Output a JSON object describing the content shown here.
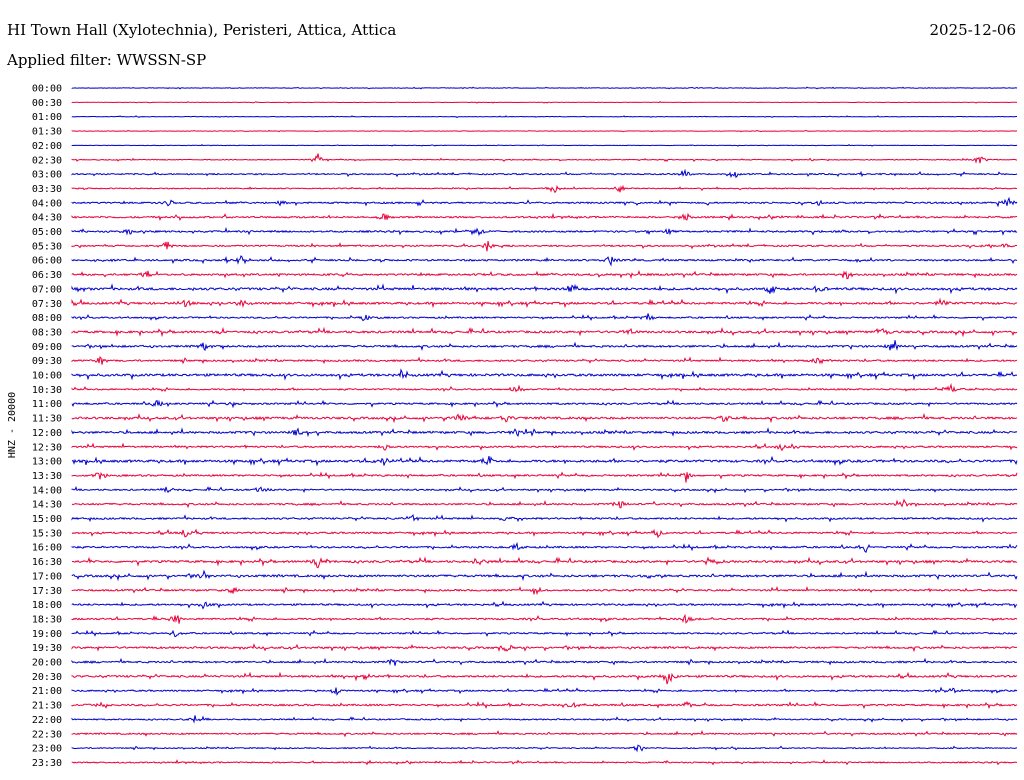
{
  "header": {
    "station": "HI Town Hall (Xylotechnia), Peristeri, Attica, Attica",
    "date": "2025-12-06",
    "filter": "Applied filter: WWSSN-SP"
  },
  "chart_data": {
    "type": "line",
    "title": "HI Town Hall (Xylotechnia), Peristeri, Attica, Attica",
    "ylabel": "HNZ - 20000",
    "xlabel": "",
    "colors": [
      "#0000cc",
      "#e8003a"
    ],
    "row_labels": [
      "00:00",
      "00:30",
      "01:00",
      "01:30",
      "02:00",
      "02:30",
      "03:00",
      "03:30",
      "04:00",
      "04:30",
      "05:00",
      "05:30",
      "06:00",
      "06:30",
      "07:00",
      "07:30",
      "08:00",
      "08:30",
      "09:00",
      "09:30",
      "10:00",
      "10:30",
      "11:00",
      "11:30",
      "12:00",
      "12:30",
      "13:00",
      "13:30",
      "14:00",
      "14:30",
      "15:00",
      "15:30",
      "16:00",
      "16:30",
      "17:00",
      "17:30",
      "18:00",
      "18:30",
      "19:00",
      "19:30",
      "20:00",
      "20:30",
      "21:00",
      "21:30",
      "22:00",
      "22:30",
      "23:00",
      "23:30"
    ],
    "noise_level": [
      0.5,
      0.4,
      0.5,
      0.4,
      0.4,
      0.8,
      1.2,
      1.0,
      1.5,
      1.6,
      1.6,
      1.4,
      1.6,
      1.8,
      2.2,
      2.0,
      1.4,
      2.0,
      1.8,
      1.6,
      2.2,
      1.4,
      1.6,
      2.0,
      2.0,
      1.6,
      2.2,
      1.6,
      1.4,
      1.6,
      1.6,
      1.6,
      1.6,
      2.0,
      2.0,
      1.6,
      1.6,
      1.6,
      1.4,
      1.8,
      1.6,
      1.8,
      1.4,
      1.6,
      1.2,
      1.4,
      1.0,
      1.2
    ],
    "events": [
      [],
      [],
      [],
      [],
      [],
      [
        [
          0.26,
          7
        ],
        [
          0.96,
          6
        ]
      ],
      [
        [
          0.7,
          6
        ],
        [
          0.65,
          4
        ]
      ],
      [
        [
          0.51,
          6
        ],
        [
          0.58,
          5
        ]
      ],
      [
        [
          0.1,
          7
        ],
        [
          0.22,
          4
        ],
        [
          0.79,
          4
        ],
        [
          0.99,
          7
        ]
      ],
      [
        [
          0.33,
          6
        ],
        [
          0.65,
          6
        ]
      ],
      [
        [
          0.06,
          4
        ],
        [
          0.43,
          5
        ],
        [
          0.63,
          4
        ]
      ],
      [
        [
          0.1,
          5
        ],
        [
          0.44,
          7
        ],
        [
          0.99,
          4
        ]
      ],
      [
        [
          0.18,
          6
        ],
        [
          0.57,
          6
        ]
      ],
      [
        [
          0.08,
          5
        ],
        [
          0.6,
          5
        ],
        [
          0.82,
          5
        ]
      ],
      [
        [
          0.01,
          5
        ],
        [
          0.53,
          6
        ],
        [
          0.74,
          6
        ],
        [
          0.79,
          5
        ]
      ],
      [
        [
          0.12,
          4
        ],
        [
          0.18,
          4
        ],
        [
          0.92,
          5
        ]
      ],
      [
        [
          0.31,
          4
        ],
        [
          0.61,
          5
        ]
      ],
      [
        [
          0.16,
          4
        ],
        [
          0.59,
          6
        ],
        [
          0.86,
          5
        ]
      ],
      [
        [
          0.14,
          4
        ],
        [
          0.87,
          5
        ]
      ],
      [
        [
          0.03,
          5
        ],
        [
          0.79,
          5
        ]
      ],
      [
        [
          0.35,
          5
        ]
      ],
      [
        [
          0.47,
          5
        ],
        [
          0.93,
          5
        ]
      ],
      [
        [
          0.09,
          4
        ],
        [
          0.17,
          4
        ]
      ],
      [
        [
          0.41,
          6
        ],
        [
          0.46,
          5
        ],
        [
          0.69,
          5
        ]
      ],
      [
        [
          0.24,
          5
        ],
        [
          0.47,
          5
        ]
      ],
      [
        [
          0.33,
          4
        ],
        [
          0.75,
          4
        ]
      ],
      [
        [
          0.33,
          5
        ],
        [
          0.44,
          6
        ]
      ],
      [
        [
          0.03,
          5
        ],
        [
          0.65,
          5
        ]
      ],
      [
        [
          0.1,
          4
        ],
        [
          0.2,
          4
        ]
      ],
      [
        [
          0.58,
          5
        ],
        [
          0.88,
          5
        ]
      ],
      [
        [
          0.36,
          4
        ],
        [
          0.46,
          4
        ]
      ],
      [
        [
          0.12,
          5
        ],
        [
          0.62,
          5
        ]
      ],
      [
        [
          0.47,
          5
        ],
        [
          0.84,
          5
        ]
      ],
      [
        [
          0.26,
          7
        ],
        [
          0.43,
          5
        ],
        [
          0.68,
          5
        ]
      ],
      [
        [
          0.14,
          5
        ],
        [
          0.61,
          5
        ]
      ],
      [
        [
          0.17,
          5
        ],
        [
          0.49,
          5
        ]
      ],
      [
        [
          0.14,
          6
        ]
      ],
      [
        [
          0.11,
          5
        ],
        [
          0.65,
          6
        ]
      ],
      [
        [
          0.11,
          5
        ]
      ],
      [
        [
          0.46,
          4
        ]
      ],
      [
        [
          0.34,
          5
        ]
      ],
      [
        [
          0.31,
          4
        ],
        [
          0.63,
          9
        ]
      ],
      [
        [
          0.28,
          5
        ],
        [
          0.93,
          5
        ]
      ],
      [
        [
          0.03,
          4
        ],
        [
          0.53,
          5
        ],
        [
          0.65,
          4
        ]
      ],
      [
        [
          0.13,
          4
        ]
      ],
      [],
      [
        [
          0.6,
          6
        ]
      ],
      []
    ]
  }
}
